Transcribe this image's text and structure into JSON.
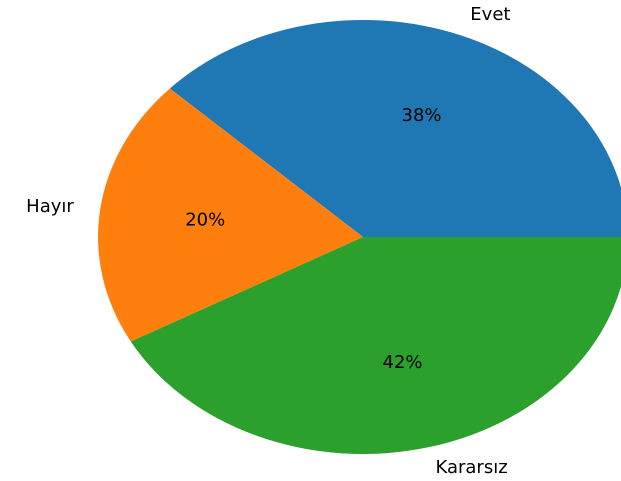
{
  "chart_data": {
    "type": "pie",
    "categories": [
      "Evet",
      "Hayır",
      "Kararsız"
    ],
    "values": [
      38,
      20,
      42
    ],
    "value_labels": [
      "38%",
      "20%",
      "42%"
    ],
    "colors": [
      "#1f77b4",
      "#ff7f0e",
      "#2ca02c"
    ]
  }
}
